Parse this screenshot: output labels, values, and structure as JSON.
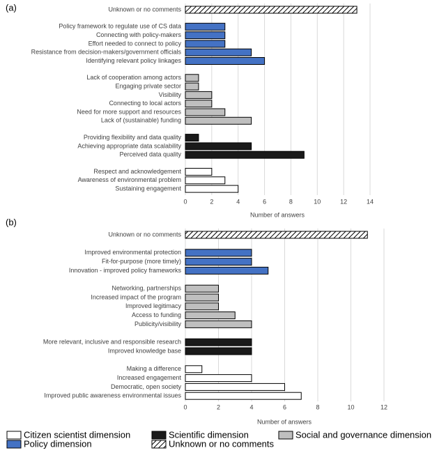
{
  "chart_data": [
    {
      "type": "bar",
      "label": "(a)",
      "x_label": "Number of answers",
      "categories": [
        "Unknown or no comments",
        "Policy framework to regulate use of CS data",
        "Connecting with policy-makers",
        "Effort needed to connect to policy",
        "Resistance from decision-makers/government officials",
        "Identifying relevant policy linkages",
        "Lack of cooperation among actors",
        "Engaging private sector",
        "Visibility",
        "Connecting to local actors",
        "Need for more support and resources",
        "Lack of (sustainable) funding",
        "Providing flexibility and data quality",
        "Achieving appropriate data scalability",
        "Perceived data quality",
        "Respect and acknowledgement",
        "Awareness of environmental problem",
        "Sustaining engagement"
      ],
      "series": [
        {
          "name": "Citizen scientist dimension",
          "color": "#ffffff",
          "values": [
            null,
            null,
            null,
            null,
            null,
            null,
            null,
            null,
            null,
            null,
            null,
            null,
            null,
            null,
            null,
            2,
            3,
            4
          ]
        },
        {
          "name": "Policy dimension",
          "color": "#4472c4",
          "values": [
            null,
            3,
            3,
            3,
            5,
            6,
            null,
            null,
            null,
            null,
            null,
            null,
            null,
            null,
            null,
            null,
            null,
            null
          ]
        },
        {
          "name": "Scientific dimension",
          "color": "#1a1a1a",
          "values": [
            null,
            null,
            null,
            null,
            null,
            null,
            null,
            null,
            null,
            null,
            null,
            null,
            1,
            5,
            9,
            null,
            null,
            null
          ]
        },
        {
          "name": "Social and governance dimension",
          "color": "#bfbfbf",
          "values": [
            null,
            null,
            null,
            null,
            null,
            null,
            1,
            1,
            2,
            2,
            3,
            5,
            null,
            null,
            null,
            null,
            null,
            null
          ]
        },
        {
          "name": "Unknown or no comments",
          "color": "#ffffff",
          "pattern": "hatch",
          "values": [
            13,
            null,
            null,
            null,
            null,
            null,
            null,
            null,
            null,
            null,
            null,
            null,
            null,
            null,
            null,
            null,
            null,
            null
          ]
        }
      ],
      "xlim": [
        0,
        14
      ],
      "xticks": [
        0,
        2,
        4,
        6,
        8,
        10,
        12,
        14
      ],
      "grid": true
    },
    {
      "type": "bar",
      "label": "(b)",
      "x_label": "Number of answers",
      "categories": [
        "Unknown or no comments",
        "Improved environmental protection",
        "Fit-for-purpose (more timely)",
        "Innovation - improved policy frameworks",
        "Networking, partnerships",
        "Increased impact of the program",
        "Improved legitimacy",
        "Access to funding",
        "Publicity/visibility",
        "More relevant, inclusive and responsible research",
        "Improved knowledge base",
        "Making a difference",
        "Increased engagement",
        "Democratic, open society",
        "Improved public awareness environmental issues"
      ],
      "series": [
        {
          "name": "Citizen scientist dimension",
          "color": "#ffffff",
          "values": [
            null,
            null,
            null,
            null,
            null,
            null,
            null,
            null,
            null,
            null,
            null,
            1,
            4,
            6,
            7
          ]
        },
        {
          "name": "Policy dimension",
          "color": "#4472c4",
          "values": [
            null,
            4,
            4,
            5,
            null,
            null,
            null,
            null,
            null,
            null,
            null,
            null,
            null,
            null,
            null
          ]
        },
        {
          "name": "Scientific dimension",
          "color": "#1a1a1a",
          "values": [
            null,
            null,
            null,
            null,
            null,
            null,
            null,
            null,
            null,
            4,
            4,
            null,
            null,
            null,
            null
          ]
        },
        {
          "name": "Social and governance dimension",
          "color": "#bfbfbf",
          "values": [
            null,
            null,
            null,
            null,
            2,
            2,
            2,
            3,
            4,
            null,
            null,
            null,
            null,
            null,
            null
          ]
        },
        {
          "name": "Unknown or no comments",
          "color": "#ffffff",
          "pattern": "hatch",
          "values": [
            11,
            null,
            null,
            null,
            null,
            null,
            null,
            null,
            null,
            null,
            null,
            null,
            null,
            null,
            null
          ]
        }
      ],
      "xlim": [
        0,
        12
      ],
      "xticks": [
        0,
        2,
        4,
        6,
        8,
        10,
        12
      ],
      "grid": true
    }
  ]
}
